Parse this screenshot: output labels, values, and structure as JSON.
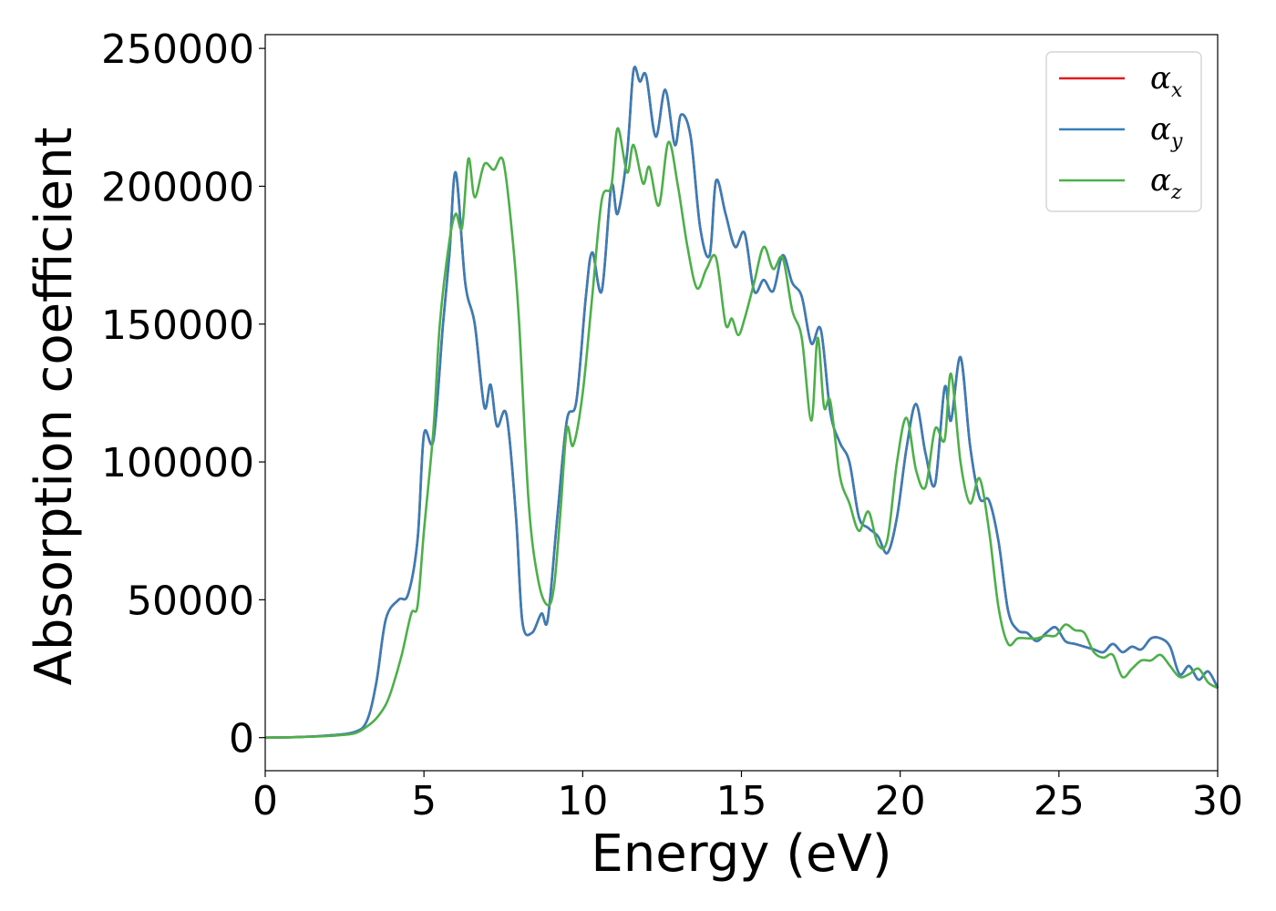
{
  "chart_data": {
    "type": "line",
    "title": "",
    "xlabel": "Energy (eV)",
    "ylabel": "Absorption coefficient",
    "xlim": [
      0,
      30
    ],
    "ylim": [
      -12000,
      255000
    ],
    "xticks": [
      0,
      5,
      10,
      15,
      20,
      25,
      30
    ],
    "yticks": [
      0,
      50000,
      100000,
      150000,
      200000,
      250000
    ],
    "grid": false,
    "legend_position": "top-right",
    "series": [
      {
        "name": "α_x",
        "symbol": "α",
        "subscript": "x",
        "color": "#e41a1c",
        "x": [
          0,
          1,
          2,
          2.8,
          3.2,
          3.5,
          3.8,
          4.2,
          4.5,
          4.8,
          5.0,
          5.3,
          5.6,
          5.8,
          6.0,
          6.3,
          6.6,
          6.9,
          7.1,
          7.3,
          7.6,
          7.9,
          8.1,
          8.4,
          8.7,
          8.9,
          9.2,
          9.5,
          9.8,
          10.1,
          10.3,
          10.6,
          10.9,
          11.1,
          11.4,
          11.6,
          11.8,
          12.0,
          12.3,
          12.6,
          12.9,
          13.1,
          13.4,
          13.7,
          14.0,
          14.2,
          14.5,
          14.8,
          15.1,
          15.4,
          15.7,
          16.0,
          16.3,
          16.6,
          16.9,
          17.2,
          17.5,
          17.8,
          18.1,
          18.4,
          18.7,
          19.0,
          19.3,
          19.6,
          19.9,
          20.2,
          20.5,
          20.8,
          21.1,
          21.4,
          21.6,
          21.9,
          22.2,
          22.5,
          22.8,
          23.1,
          23.4,
          23.7,
          24.0,
          24.3,
          24.6,
          24.9,
          25.2,
          25.5,
          25.8,
          26.1,
          26.4,
          26.7,
          27.0,
          27.3,
          27.6,
          27.9,
          28.2,
          28.5,
          28.8,
          29.1,
          29.4,
          29.7,
          30
        ],
        "values": [
          0,
          200,
          800,
          2000,
          6000,
          20000,
          43000,
          50000,
          52000,
          72000,
          110000,
          108000,
          150000,
          175000,
          205000,
          165000,
          150000,
          120000,
          128000,
          113000,
          117000,
          80000,
          42000,
          38000,
          45000,
          43000,
          80000,
          115000,
          122000,
          160000,
          176000,
          162000,
          200000,
          190000,
          212000,
          242000,
          238000,
          240000,
          218000,
          235000,
          215000,
          226000,
          218000,
          185000,
          175000,
          202000,
          190000,
          178000,
          183000,
          162000,
          166000,
          162000,
          175000,
          165000,
          160000,
          143000,
          148000,
          118000,
          107000,
          100000,
          80000,
          76000,
          73000,
          67000,
          80000,
          105000,
          121000,
          103000,
          92000,
          127000,
          115000,
          138000,
          106000,
          87000,
          86000,
          71000,
          46000,
          39000,
          38000,
          35000,
          38000,
          40000,
          35000,
          34000,
          33000,
          32000,
          31000,
          34000,
          31000,
          33000,
          32000,
          36000,
          36000,
          33000,
          23000,
          26000,
          21000,
          24000,
          18000
        ]
      },
      {
        "name": "α_y",
        "symbol": "α",
        "subscript": "y",
        "color": "#377eb8",
        "x": [
          0,
          1,
          2,
          2.8,
          3.2,
          3.5,
          3.8,
          4.2,
          4.5,
          4.8,
          5.0,
          5.3,
          5.6,
          5.8,
          6.0,
          6.3,
          6.6,
          6.9,
          7.1,
          7.3,
          7.6,
          7.9,
          8.1,
          8.4,
          8.7,
          8.9,
          9.2,
          9.5,
          9.8,
          10.1,
          10.3,
          10.6,
          10.9,
          11.1,
          11.4,
          11.6,
          11.8,
          12.0,
          12.3,
          12.6,
          12.9,
          13.1,
          13.4,
          13.7,
          14.0,
          14.2,
          14.5,
          14.8,
          15.1,
          15.4,
          15.7,
          16.0,
          16.3,
          16.6,
          16.9,
          17.2,
          17.5,
          17.8,
          18.1,
          18.4,
          18.7,
          19.0,
          19.3,
          19.6,
          19.9,
          20.2,
          20.5,
          20.8,
          21.1,
          21.4,
          21.6,
          21.9,
          22.2,
          22.5,
          22.8,
          23.1,
          23.4,
          23.7,
          24.0,
          24.3,
          24.6,
          24.9,
          25.2,
          25.5,
          25.8,
          26.1,
          26.4,
          26.7,
          27.0,
          27.3,
          27.6,
          27.9,
          28.2,
          28.5,
          28.8,
          29.1,
          29.4,
          29.7,
          30
        ],
        "values": [
          0,
          200,
          800,
          2000,
          6000,
          20000,
          43000,
          50000,
          52000,
          72000,
          110000,
          108000,
          150000,
          175000,
          205000,
          165000,
          150000,
          120000,
          128000,
          113000,
          117000,
          80000,
          42000,
          38000,
          45000,
          43000,
          80000,
          115000,
          122000,
          160000,
          176000,
          162000,
          200000,
          190000,
          212000,
          242000,
          238000,
          240000,
          218000,
          235000,
          215000,
          226000,
          218000,
          185000,
          175000,
          202000,
          190000,
          178000,
          183000,
          162000,
          166000,
          162000,
          175000,
          165000,
          160000,
          143000,
          148000,
          118000,
          107000,
          100000,
          80000,
          76000,
          73000,
          67000,
          80000,
          105000,
          121000,
          103000,
          92000,
          127000,
          115000,
          138000,
          106000,
          87000,
          86000,
          71000,
          46000,
          39000,
          38000,
          35000,
          38000,
          40000,
          35000,
          34000,
          33000,
          32000,
          31000,
          34000,
          31000,
          33000,
          32000,
          36000,
          36000,
          33000,
          23000,
          26000,
          21000,
          24000,
          18000
        ]
      },
      {
        "name": "α_z",
        "symbol": "α",
        "subscript": "z",
        "color": "#4daf4a",
        "x": [
          0,
          1,
          2,
          2.8,
          3.2,
          3.5,
          3.8,
          4.0,
          4.3,
          4.6,
          4.8,
          5.0,
          5.3,
          5.5,
          5.8,
          6.0,
          6.2,
          6.4,
          6.6,
          6.9,
          7.2,
          7.5,
          7.8,
          8.0,
          8.3,
          8.6,
          8.9,
          9.1,
          9.3,
          9.5,
          9.7,
          10.0,
          10.3,
          10.6,
          10.9,
          11.1,
          11.4,
          11.6,
          11.9,
          12.1,
          12.4,
          12.7,
          13.0,
          13.3,
          13.6,
          13.9,
          14.2,
          14.5,
          14.7,
          14.9,
          15.1,
          15.4,
          15.7,
          16.0,
          16.3,
          16.6,
          16.9,
          17.2,
          17.4,
          17.6,
          17.8,
          18.1,
          18.4,
          18.7,
          19.0,
          19.3,
          19.6,
          19.9,
          20.2,
          20.5,
          20.8,
          21.1,
          21.4,
          21.6,
          21.9,
          22.2,
          22.5,
          22.8,
          23.1,
          23.4,
          23.7,
          24.0,
          24.3,
          24.6,
          24.9,
          25.2,
          25.5,
          25.8,
          26.1,
          26.4,
          26.7,
          27.0,
          27.3,
          27.6,
          27.9,
          28.2,
          28.5,
          28.8,
          29.1,
          29.4,
          29.7,
          30
        ],
        "values": [
          0,
          150,
          600,
          1500,
          4000,
          7000,
          12000,
          18000,
          30000,
          45000,
          48000,
          75000,
          112000,
          150000,
          180000,
          190000,
          185000,
          210000,
          196000,
          208000,
          206000,
          209000,
          180000,
          150000,
          85000,
          57000,
          48000,
          55000,
          82000,
          112000,
          106000,
          125000,
          160000,
          195000,
          200000,
          221000,
          205000,
          215000,
          201000,
          207000,
          193000,
          216000,
          200000,
          178000,
          163000,
          170000,
          174000,
          150000,
          152000,
          146000,
          152000,
          165000,
          178000,
          170000,
          174000,
          155000,
          145000,
          115000,
          145000,
          120000,
          122000,
          95000,
          85000,
          75000,
          82000,
          70000,
          72000,
          100000,
          116000,
          97000,
          91000,
          112000,
          108000,
          132000,
          100000,
          85000,
          94000,
          75000,
          47000,
          34000,
          36000,
          36000,
          36000,
          37000,
          37000,
          41000,
          39000,
          38000,
          31000,
          29000,
          30000,
          22000,
          25000,
          28000,
          28000,
          30000,
          26000,
          22000,
          23000,
          25000,
          20000,
          18000
        ]
      }
    ]
  }
}
